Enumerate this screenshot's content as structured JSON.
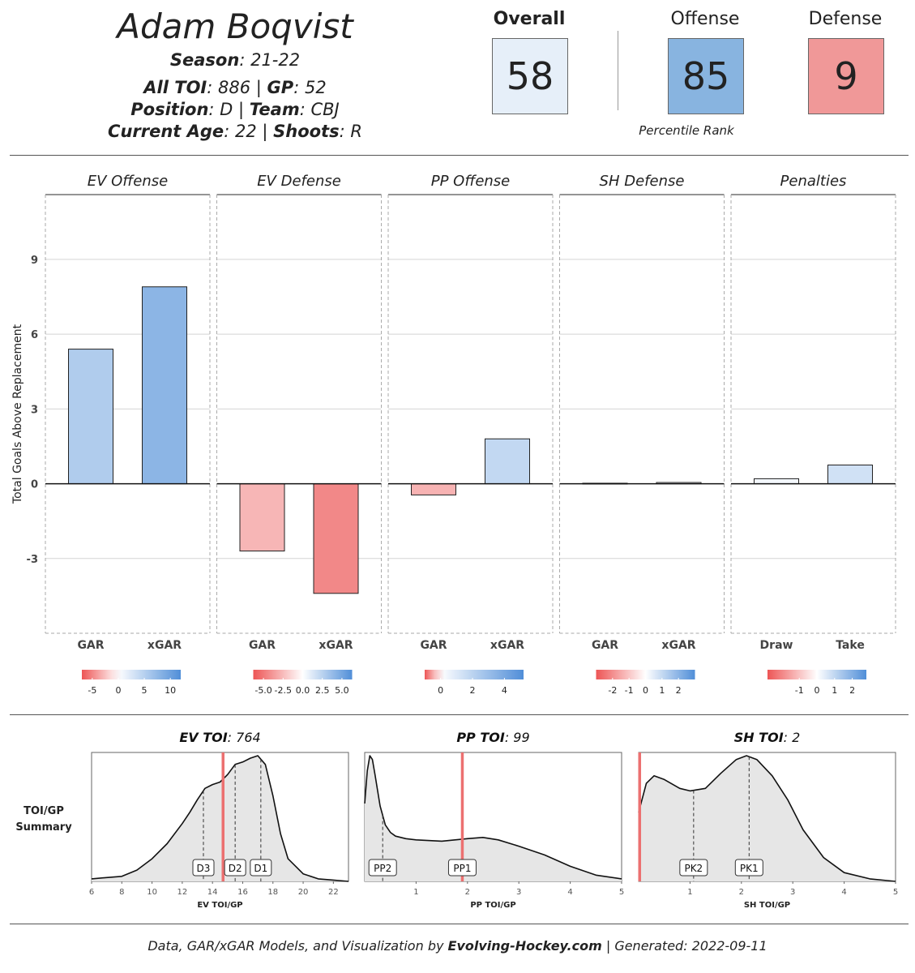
{
  "player": {
    "name": "Adam Boqvist",
    "season_label": "Season",
    "season": "21-22",
    "toi_label": "All TOI",
    "toi": "886",
    "gp_label": "GP",
    "gp": "52",
    "position_label": "Position",
    "position": "D",
    "team_label": "Team",
    "team": "CBJ",
    "age_label": "Current Age",
    "age": "22",
    "shoots_label": "Shoots",
    "shoots": "R"
  },
  "ranks": {
    "overall_label": "Overall",
    "overall": "58",
    "overall_color": "#e6eff9",
    "offense_label": "Offense",
    "offense": "85",
    "offense_color": "#88b4e0",
    "defense_label": "Defense",
    "defense": "9",
    "defense_color": "#f09898",
    "caption": "Percentile Rank"
  },
  "chart_data": [
    {
      "type": "bar",
      "ylabel": "Total Goals Above Replacement",
      "yticks": [
        9,
        6,
        3,
        0,
        -3
      ],
      "ylim": [
        -6,
        11.6
      ],
      "grid": true,
      "panels": [
        {
          "title": "EV Offense",
          "categories": [
            "GAR",
            "xGAR"
          ],
          "values": [
            5.4,
            7.9
          ],
          "legend": {
            "min": -7,
            "max": 12,
            "ticks": [
              -5,
              0,
              5,
              10
            ],
            "tick_labels": [
              "-5",
              "0",
              "5",
              "10"
            ]
          }
        },
        {
          "title": "EV Defense",
          "categories": [
            "GAR",
            "xGAR"
          ],
          "values": [
            -2.7,
            -4.4
          ],
          "legend": {
            "min": -6.3,
            "max": 6.3,
            "ticks": [
              -5,
              -2.5,
              0,
              2.5,
              5
            ],
            "tick_labels": [
              "-5.0",
              "-2.5",
              "0.0",
              "2.5",
              "5.0"
            ]
          }
        },
        {
          "title": "PP Offense",
          "categories": [
            "GAR",
            "xGAR"
          ],
          "values": [
            -0.45,
            1.8
          ],
          "legend": {
            "min": -1.0,
            "max": 5.2,
            "ticks": [
              0,
              2,
              4
            ],
            "tick_labels": [
              "0",
              "2",
              "4"
            ]
          }
        },
        {
          "title": "SH Defense",
          "categories": [
            "GAR",
            "xGAR"
          ],
          "values": [
            0.02,
            0.05
          ],
          "legend": {
            "min": -3.0,
            "max": 3.0,
            "ticks": [
              -2,
              -1,
              0,
              1,
              2
            ],
            "tick_labels": [
              "-2",
              "-1",
              "0",
              "1",
              "2"
            ]
          }
        },
        {
          "title": "Penalties",
          "categories": [
            "Draw",
            "Take"
          ],
          "values": [
            0.2,
            0.75
          ],
          "legend": {
            "min": -2.8,
            "max": 2.8,
            "ticks": [
              -1,
              0,
              1,
              2
            ],
            "tick_labels": [
              "-1",
              "0",
              "1",
              "2"
            ]
          }
        }
      ]
    },
    {
      "type": "area",
      "row_label": [
        "TOI/GP",
        "Summary"
      ],
      "panels": [
        {
          "title_bold": "EV TOI",
          "title_value": "764",
          "xlabel": "EV TOI/GP",
          "xlim": [
            6,
            23
          ],
          "xticks": [
            6,
            8,
            10,
            12,
            14,
            16,
            18,
            20,
            22
          ],
          "density_x": [
            6,
            7,
            8,
            9,
            10,
            11,
            12,
            12.5,
            13,
            13.5,
            14,
            14.5,
            15,
            15.5,
            16,
            16.5,
            17,
            17.5,
            18,
            18.5,
            19,
            20,
            21,
            22,
            23
          ],
          "density_y": [
            0.02,
            0.03,
            0.04,
            0.09,
            0.18,
            0.3,
            0.46,
            0.55,
            0.65,
            0.74,
            0.77,
            0.79,
            0.85,
            0.93,
            0.95,
            0.98,
            1.0,
            0.93,
            0.68,
            0.38,
            0.18,
            0.06,
            0.02,
            0.01,
            0.0
          ],
          "player_value": 14.7,
          "markers": [
            {
              "label": "D3",
              "x": 13.4
            },
            {
              "label": "D2",
              "x": 15.5
            },
            {
              "label": "D1",
              "x": 17.2
            }
          ]
        },
        {
          "title_bold": "PP TOI",
          "title_value": "99",
          "xlabel": "PP TOI/GP",
          "xlim": [
            0,
            5
          ],
          "xticks": [
            1,
            2,
            3,
            4,
            5
          ],
          "density_x": [
            0,
            0.05,
            0.1,
            0.15,
            0.2,
            0.3,
            0.4,
            0.5,
            0.6,
            0.8,
            1.0,
            1.5,
            2.0,
            2.3,
            2.6,
            3.0,
            3.5,
            4.0,
            4.5,
            5.0
          ],
          "density_y": [
            0.62,
            0.88,
            1.0,
            0.97,
            0.85,
            0.6,
            0.45,
            0.39,
            0.36,
            0.34,
            0.33,
            0.32,
            0.34,
            0.35,
            0.33,
            0.28,
            0.21,
            0.12,
            0.05,
            0.02
          ],
          "player_value": 1.9,
          "markers": [
            {
              "label": "PP2",
              "x": 0.35
            },
            {
              "label": "PP1",
              "x": 1.9
            }
          ]
        },
        {
          "title_bold": "SH TOI",
          "title_value": "2",
          "xlabel": "SH TOI/GP",
          "xlim": [
            0,
            5
          ],
          "xticks": [
            1,
            2,
            3,
            4,
            5
          ],
          "density_x": [
            0,
            0.15,
            0.3,
            0.5,
            0.8,
            1.0,
            1.3,
            1.6,
            1.9,
            2.1,
            2.3,
            2.6,
            2.9,
            3.2,
            3.6,
            4.0,
            4.5,
            5.0
          ],
          "density_y": [
            0.55,
            0.78,
            0.84,
            0.81,
            0.74,
            0.72,
            0.74,
            0.86,
            0.97,
            1.0,
            0.97,
            0.84,
            0.65,
            0.41,
            0.19,
            0.07,
            0.02,
            0.0
          ],
          "player_value": 0.02,
          "markers": [
            {
              "label": "PK2",
              "x": 1.07
            },
            {
              "label": "PK1",
              "x": 2.15
            }
          ]
        }
      ]
    }
  ],
  "footer": {
    "prefix": "Data, GAR/xGAR Models, and Visualization by ",
    "brand": "Evolving-Hockey.com",
    "suffix": " | Generated: 2022-09-11"
  }
}
